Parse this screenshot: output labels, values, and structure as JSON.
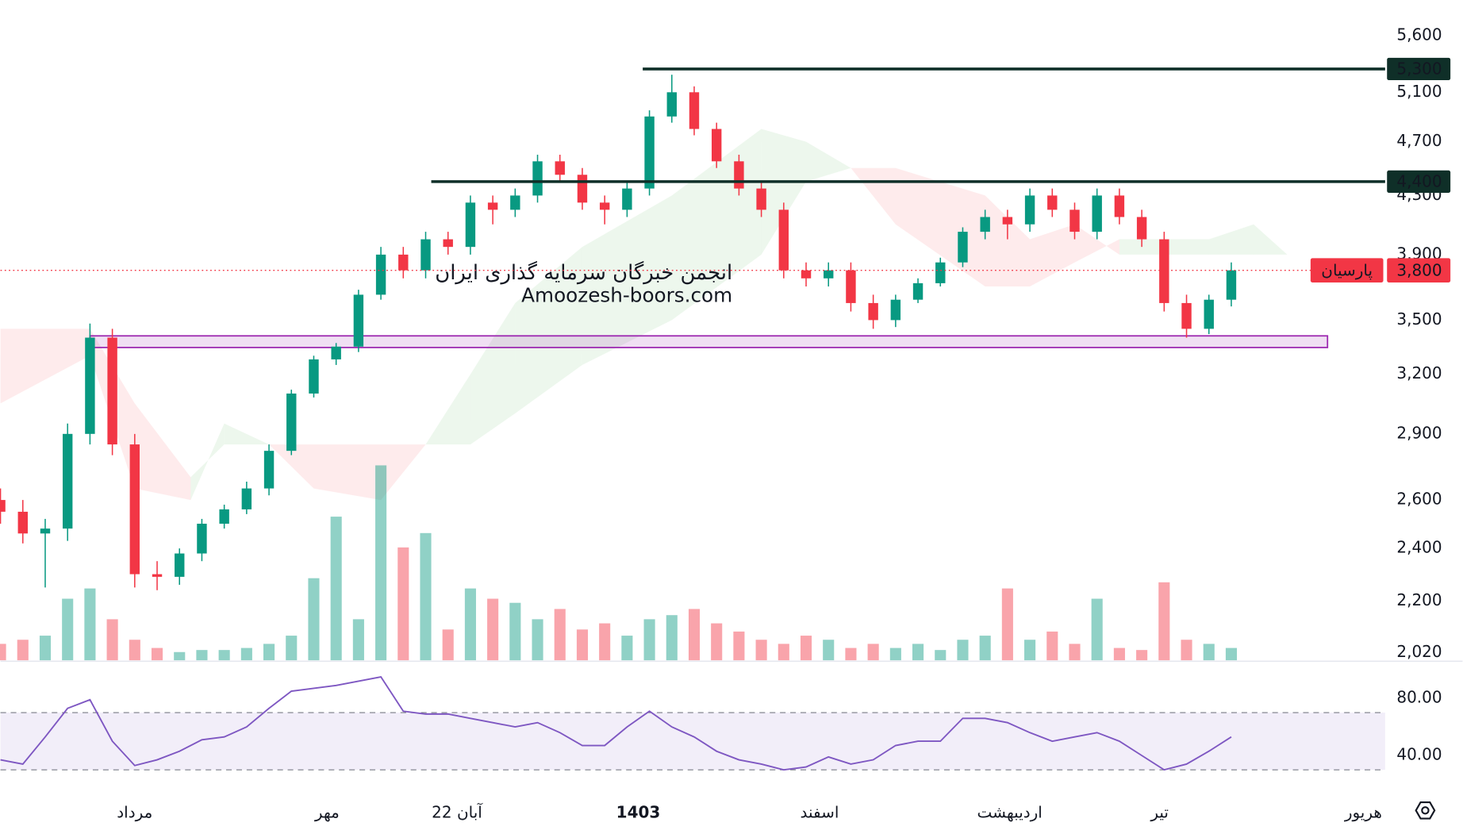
{
  "chart_data": {
    "type": "candlestick",
    "up_color": "#089981",
    "down_color": "#f23645",
    "open": [
      2600,
      2550,
      2460,
      2480,
      2900,
      3400,
      2850,
      2300,
      2290,
      2380,
      2500,
      2560,
      2650,
      2820,
      3100,
      3280,
      3350,
      3650,
      3900,
      3800,
      4000,
      3950,
      4250,
      4200,
      4300,
      4550,
      4450,
      4250,
      4200,
      4350,
      4900,
      5100,
      4800,
      4550,
      4350,
      4200,
      3800,
      3750,
      3800,
      3600,
      3500,
      3620,
      3720,
      3850,
      4050,
      4150,
      4100,
      4300,
      4200,
      4050,
      4300,
      4150,
      4000,
      3600,
      3450,
      3620
    ],
    "high": [
      2650,
      2600,
      2520,
      2950,
      3480,
      3450,
      2900,
      2350,
      2400,
      2520,
      2580,
      2680,
      2850,
      3120,
      3300,
      3370,
      3680,
      3950,
      3950,
      4050,
      4050,
      4300,
      4300,
      4350,
      4600,
      4600,
      4500,
      4300,
      4400,
      4950,
      5250,
      5150,
      4850,
      4600,
      4400,
      4250,
      3850,
      3850,
      3850,
      3650,
      3650,
      3750,
      3880,
      4080,
      4200,
      4200,
      4350,
      4350,
      4250,
      4350,
      4350,
      4200,
      4050,
      3650,
      3650,
      3850
    ],
    "low": [
      2500,
      2420,
      2250,
      2430,
      2850,
      2800,
      2250,
      2240,
      2260,
      2350,
      2480,
      2540,
      2620,
      2800,
      3080,
      3250,
      3320,
      3620,
      3750,
      3750,
      3900,
      3900,
      4100,
      4150,
      4250,
      4400,
      4200,
      4100,
      4150,
      4300,
      4850,
      4750,
      4500,
      4300,
      4150,
      3750,
      3700,
      3700,
      3550,
      3450,
      3460,
      3600,
      3700,
      3820,
      4000,
      4000,
      4050,
      4150,
      4000,
      4000,
      4100,
      3950,
      3550,
      3400,
      3420,
      3580
    ],
    "close": [
      2550,
      2460,
      2480,
      2900,
      3400,
      2850,
      2300,
      2290,
      2380,
      2500,
      2560,
      2650,
      2820,
      3100,
      3280,
      3350,
      3650,
      3900,
      3800,
      4000,
      3950,
      4250,
      4200,
      4300,
      4550,
      4450,
      4250,
      4200,
      4350,
      4900,
      5100,
      4800,
      4550,
      4350,
      4200,
      3800,
      3750,
      3800,
      3600,
      3500,
      3620,
      3720,
      3850,
      4050,
      4150,
      4100,
      4300,
      4200,
      4050,
      4300,
      4150,
      4000,
      3600,
      3450,
      3620,
      3800
    ],
    "volume": [
      8,
      10,
      12,
      30,
      35,
      20,
      10,
      6,
      4,
      5,
      5,
      6,
      8,
      12,
      40,
      70,
      20,
      95,
      55,
      62,
      15,
      35,
      30,
      28,
      20,
      25,
      15,
      18,
      12,
      20,
      22,
      25,
      18,
      14,
      10,
      8,
      12,
      10,
      6,
      8,
      6,
      8,
      5,
      10,
      12,
      35,
      10,
      14,
      8,
      30,
      6,
      5,
      38,
      10,
      8,
      6
    ],
    "vlim": [
      0,
      100
    ],
    "xlim": [
      0,
      61.875
    ],
    "xticks": [
      {
        "value": 6,
        "label": "مرداد"
      },
      {
        "value": 14.6,
        "label": "مهر"
      },
      {
        "value": 20.4,
        "label": "22 آبان"
      },
      {
        "value": 28.5,
        "label": "1403",
        "bold": true
      },
      {
        "value": 36.6,
        "label": "اسفند"
      },
      {
        "value": 45.1,
        "label": "اردیبهشت"
      },
      {
        "value": 51.8,
        "label": "تیر"
      },
      {
        "value": 60.9,
        "label": "هریور"
      }
    ],
    "log_scale": true,
    "ylim": [
      1995,
      5940
    ],
    "yticks": [
      {
        "value": 5600,
        "label": "5,600"
      },
      {
        "value": 5100,
        "label": "5,100"
      },
      {
        "value": 4700,
        "label": "4,700"
      },
      {
        "value": 4300,
        "label": "4,300"
      },
      {
        "value": 3900,
        "label": "3,900"
      },
      {
        "value": 3500,
        "label": "3,500"
      },
      {
        "value": 3200,
        "label": "3,200"
      },
      {
        "value": 2900,
        "label": "2,900"
      },
      {
        "value": 2600,
        "label": "2,600"
      },
      {
        "value": 2400,
        "label": "2,400"
      },
      {
        "value": 2200,
        "label": "2,200"
      },
      {
        "value": 2020,
        "label": "2,020"
      }
    ],
    "cloud": {
      "x": [
        0,
        4,
        6,
        8.5,
        10,
        12,
        14,
        17,
        19,
        21,
        23,
        26,
        30,
        34,
        36,
        38,
        40,
        44,
        46,
        48,
        50,
        54,
        56,
        57.5
      ],
      "spanA": [
        3050,
        3300,
        2650,
        2600,
        2950,
        2850,
        2650,
        2600,
        2850,
        3200,
        3600,
        3950,
        4300,
        4800,
        4700,
        4500,
        4100,
        3700,
        3700,
        3850,
        4000,
        4000,
        4100,
        3900
      ],
      "spanB": [
        3450,
        3450,
        3050,
        2700,
        2850,
        2850,
        2850,
        2850,
        2850,
        2850,
        3000,
        3250,
        3500,
        3900,
        4400,
        4500,
        4500,
        4300,
        4000,
        4100,
        3900,
        3900,
        3900,
        3900
      ],
      "up_color": "#4caf50",
      "down_color": "#f23645"
    },
    "levels": [
      {
        "value": 5300,
        "label": "5,300",
        "from": 28.7
      },
      {
        "value": 4400,
        "label": "4,400",
        "from": 19.25
      }
    ],
    "level_color": "#0f2f28",
    "zone": {
      "x": [
        4,
        59.3
      ],
      "y": [
        3345,
        3410
      ],
      "color": "#9c27b0"
    },
    "last": {
      "value": 3800,
      "label": "3,800",
      "name": "پارسیان"
    },
    "watermark": [
      "انجمن خبرگان سرمایه گذاری ایران",
      "Amoozesh-boors.com"
    ],
    "rsi": {
      "values": [
        37,
        34,
        53,
        73,
        79,
        50,
        33,
        37,
        43,
        51,
        53,
        60,
        73,
        85,
        87,
        89,
        92,
        95,
        71,
        69,
        69,
        66,
        63,
        60,
        63,
        56,
        47,
        47,
        60,
        71,
        60,
        53,
        43,
        37,
        34,
        30,
        32,
        39,
        34,
        37,
        47,
        50,
        50,
        66,
        66,
        63,
        56,
        50,
        53,
        56,
        50,
        40,
        30,
        34,
        43,
        53
      ],
      "color": "#7e57c2",
      "ylim": [
        14,
        104
      ],
      "band": [
        30,
        70
      ],
      "yticks": [
        {
          "value": 80,
          "label": "80.00"
        },
        {
          "value": 40,
          "label": "40.00"
        }
      ]
    }
  }
}
